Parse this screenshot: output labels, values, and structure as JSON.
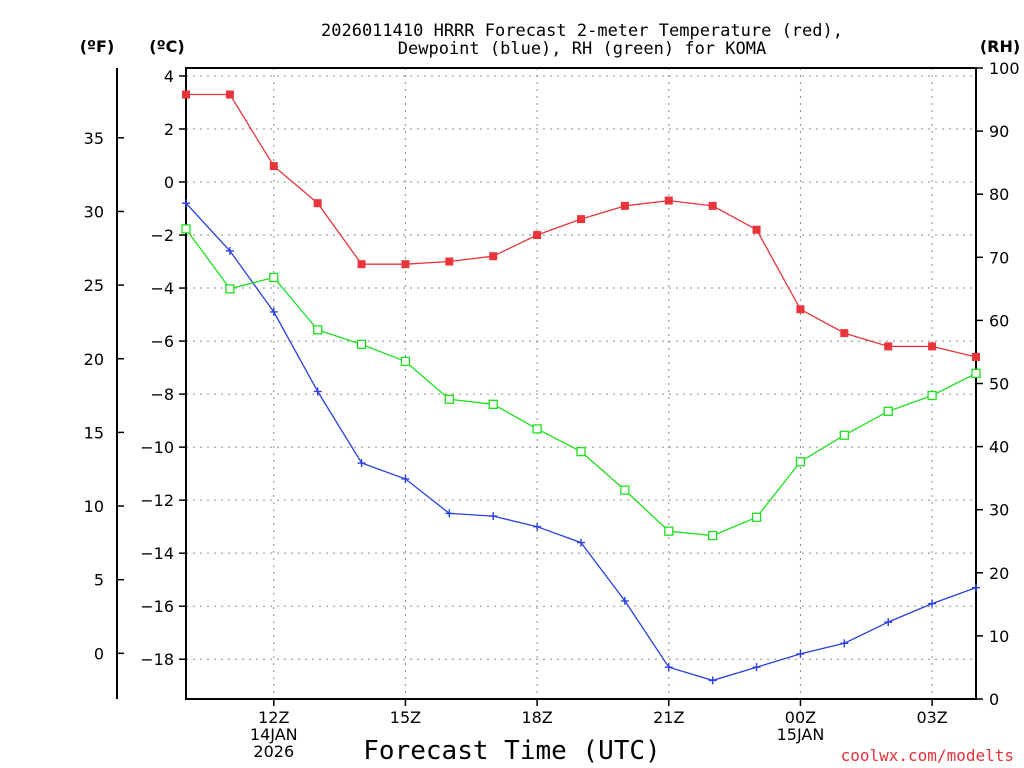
{
  "chart_data": {
    "type": "line",
    "title_lines": [
      "2026011410 HRRR Forecast 2-meter Temperature (red),",
      "Dewpoint (blue), RH (green) for KOMA"
    ],
    "xlabel": "Forecast Time (UTC)",
    "credit": "coolwx.com/modelts",
    "unit_labels": {
      "fahrenheit": "(ºF)",
      "celsius": "(ºC)",
      "rh": "(RH)"
    },
    "x_hours": [
      10,
      11,
      12,
      13,
      14,
      15,
      16,
      17,
      18,
      19,
      20,
      21,
      22,
      23,
      24,
      25,
      26,
      27,
      28
    ],
    "xlim": [
      10,
      28
    ],
    "x_ticks": [
      {
        "hour": 12,
        "lines": [
          "12Z",
          "14JAN",
          "2026"
        ]
      },
      {
        "hour": 15,
        "lines": [
          "15Z"
        ]
      },
      {
        "hour": 18,
        "lines": [
          "18Z"
        ]
      },
      {
        "hour": 21,
        "lines": [
          "21Z"
        ]
      },
      {
        "hour": 24,
        "lines": [
          "00Z",
          "15JAN"
        ]
      },
      {
        "hour": 27,
        "lines": [
          "03Z"
        ]
      }
    ],
    "celsius_axis": {
      "ylim": [
        -19.5,
        4.3
      ],
      "ticks": [
        4,
        2,
        0,
        -2,
        -4,
        -6,
        -8,
        -10,
        -12,
        -14,
        -16,
        -18
      ]
    },
    "fahrenheit_axis": {
      "ticks": [
        35,
        30,
        25,
        20,
        15,
        10,
        5,
        0
      ]
    },
    "rh_axis": {
      "ylim": [
        0,
        100
      ],
      "ticks": [
        100,
        90,
        80,
        70,
        60,
        50,
        40,
        30,
        20,
        10,
        0
      ]
    },
    "series": [
      {
        "name": "Temperature",
        "axis": "celsius",
        "color": "#e8343a",
        "marker": "filled-square",
        "values": [
          3.3,
          3.3,
          0.6,
          -0.8,
          -3.1,
          -3.1,
          -3.0,
          -2.8,
          -2.0,
          -1.4,
          -0.9,
          -0.7,
          -0.9,
          -1.8,
          -4.8,
          -5.7,
          -6.2,
          -6.2,
          -6.6
        ]
      },
      {
        "name": "Dewpoint",
        "axis": "celsius",
        "color": "#2a3fe0",
        "marker": "plus",
        "values": [
          -0.8,
          -2.6,
          -4.9,
          -7.9,
          -10.6,
          -11.2,
          -12.5,
          -12.6,
          -13.0,
          -13.6,
          -15.8,
          -18.3,
          -18.8,
          -18.3,
          -17.8,
          -17.4,
          -16.6,
          -15.9,
          -15.3
        ]
      },
      {
        "name": "RH",
        "axis": "rh",
        "color": "#1ee01e",
        "marker": "open-square",
        "values": [
          74.5,
          65,
          66.8,
          58.5,
          56.2,
          53.5,
          47.5,
          46.7,
          42.8,
          39.2,
          33.1,
          26.6,
          25.9,
          28.8,
          37.6,
          41.8,
          45.6,
          48.1,
          51.6
        ]
      }
    ]
  }
}
